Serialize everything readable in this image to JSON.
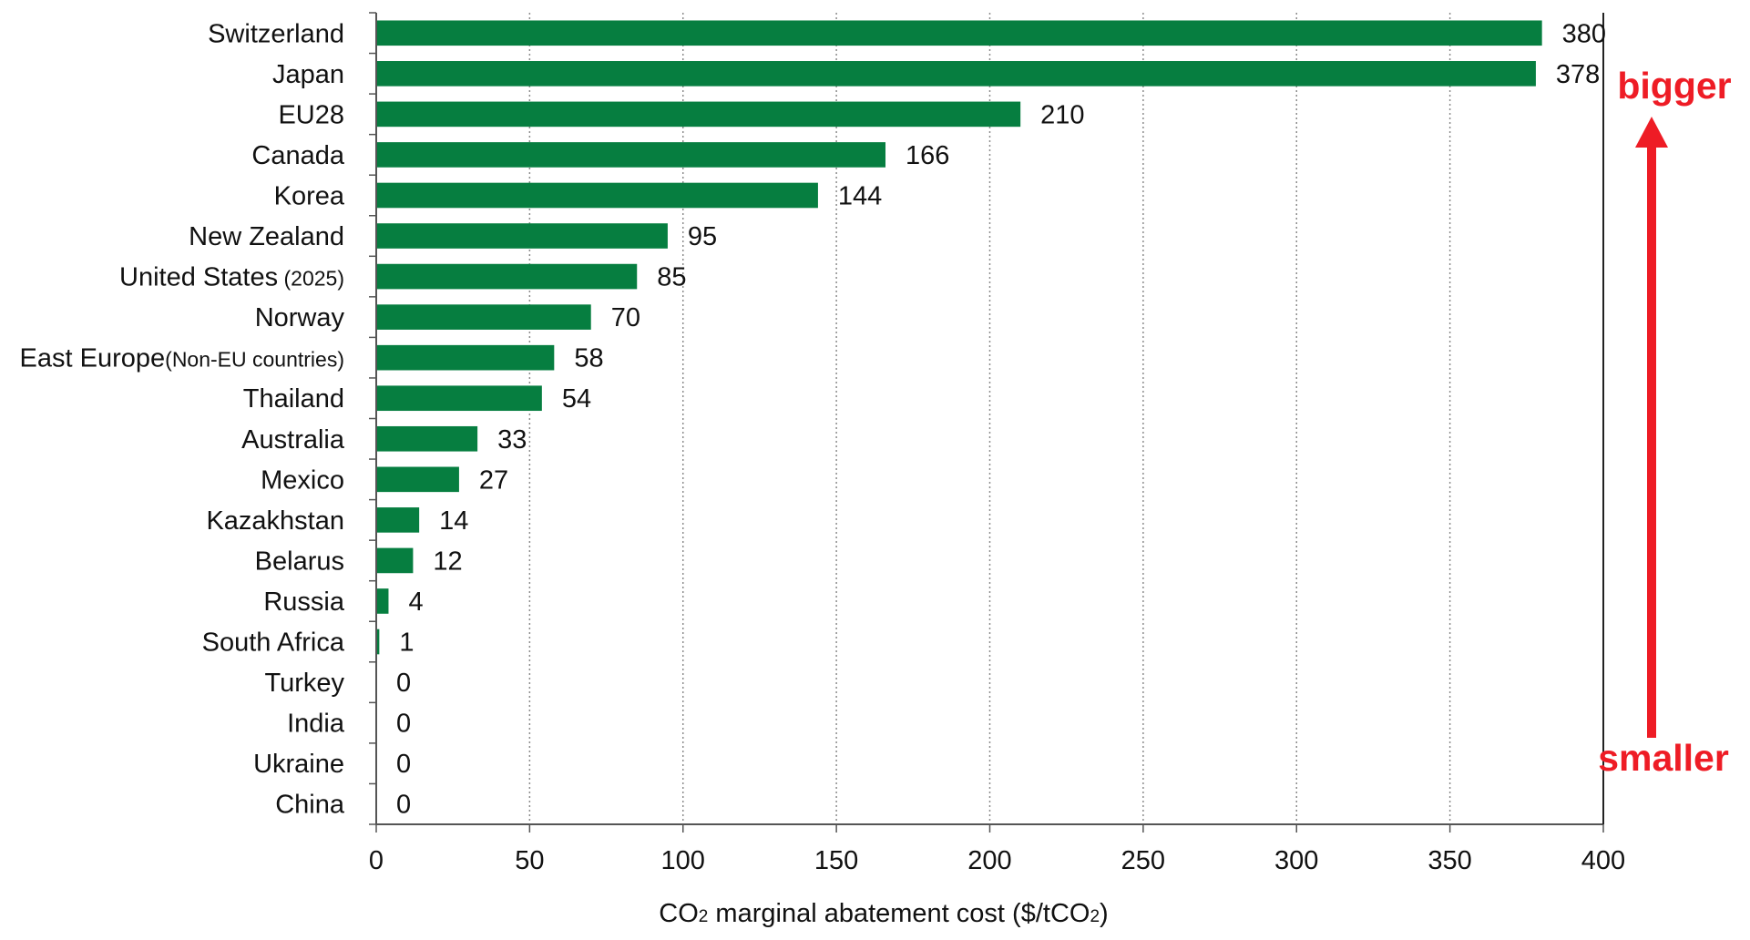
{
  "chart_data": {
    "type": "bar",
    "orientation": "horizontal",
    "categories": [
      {
        "name": "Switzerland",
        "note": ""
      },
      {
        "name": "Japan",
        "note": ""
      },
      {
        "name": "EU28",
        "note": ""
      },
      {
        "name": "Canada",
        "note": ""
      },
      {
        "name": "Korea",
        "note": ""
      },
      {
        "name": "New Zealand",
        "note": ""
      },
      {
        "name": "United States",
        "note": "(2025)"
      },
      {
        "name": "Norway",
        "note": ""
      },
      {
        "name": "East Europe",
        "note": "(Non-EU countries)"
      },
      {
        "name": "Thailand",
        "note": ""
      },
      {
        "name": "Australia",
        "note": ""
      },
      {
        "name": "Mexico",
        "note": ""
      },
      {
        "name": "Kazakhstan",
        "note": ""
      },
      {
        "name": "Belarus",
        "note": ""
      },
      {
        "name": "Russia",
        "note": ""
      },
      {
        "name": "South Africa",
        "note": ""
      },
      {
        "name": "Turkey",
        "note": ""
      },
      {
        "name": "India",
        "note": ""
      },
      {
        "name": "Ukraine",
        "note": ""
      },
      {
        "name": "China",
        "note": ""
      }
    ],
    "values": [
      380,
      378,
      210,
      166,
      144,
      95,
      85,
      70,
      58,
      54,
      33,
      27,
      14,
      12,
      4,
      1,
      0,
      0,
      0,
      0
    ],
    "xlim": [
      0,
      400
    ],
    "xticks": [
      0,
      50,
      100,
      150,
      200,
      250,
      300,
      350,
      400
    ],
    "xlabel": {
      "prefix": "CO",
      "sub1": "2",
      "middle": " marginal abatement cost ($/tCO",
      "sub2": "2",
      "suffix": ")"
    },
    "grid": "vertical dotted",
    "bar_color": "#067e40",
    "annotations": {
      "top_label": "bigger",
      "bottom_label": "smaller",
      "color": "#ee1c25"
    }
  }
}
